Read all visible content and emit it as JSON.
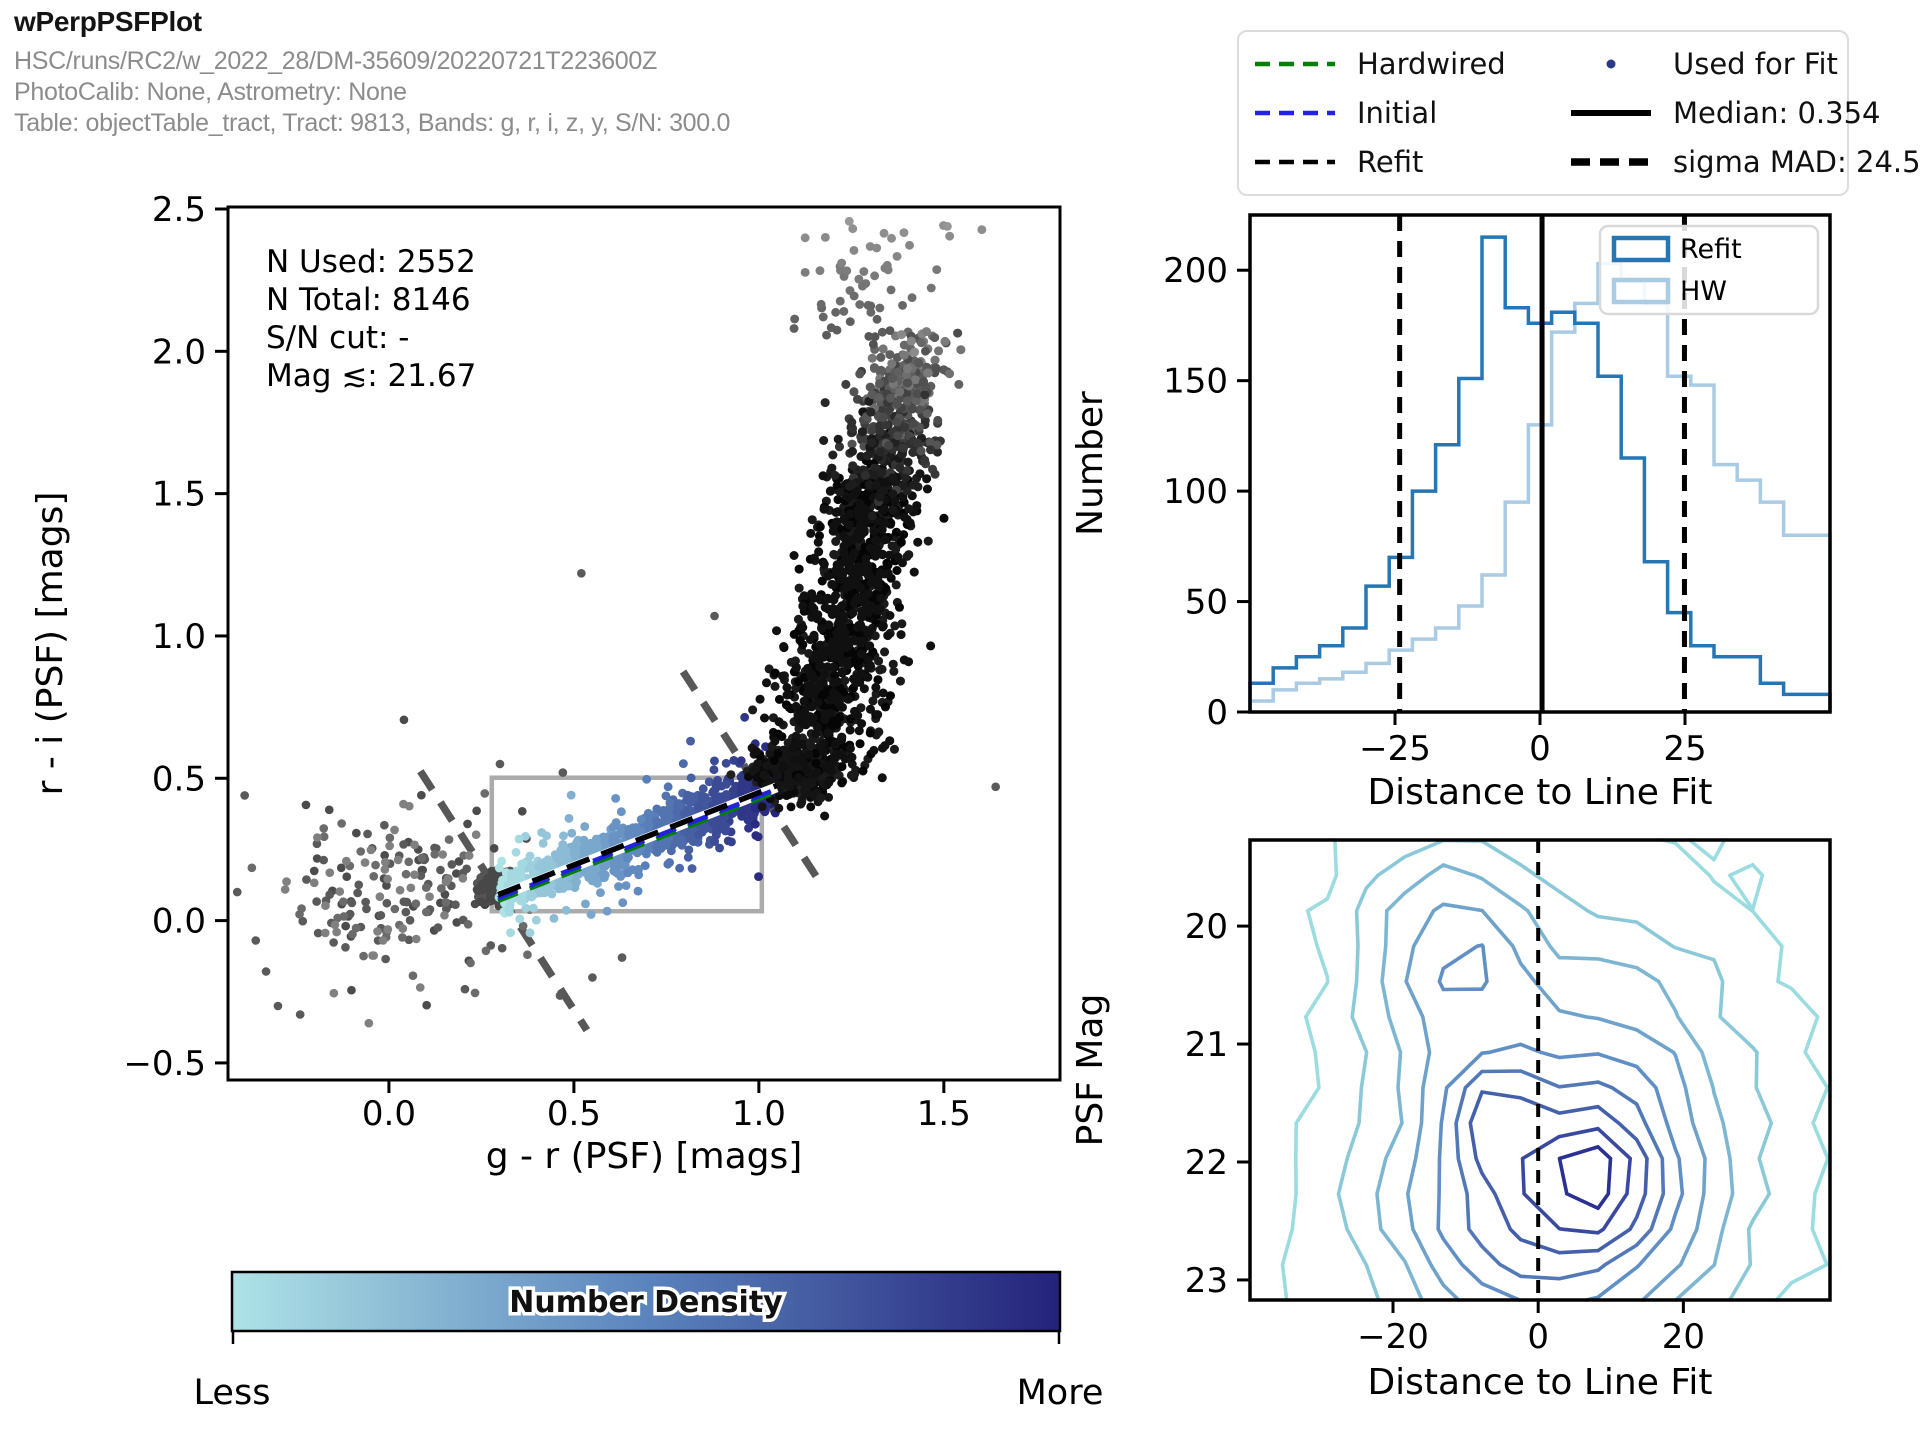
{
  "header": {
    "title": "wPerpPSFPlot",
    "subtitle1": "HSC/runs/RC2/w_2022_28/DM-35609/20220721T223600Z",
    "subtitle2": "PhotoCalib: None, Astrometry: None",
    "subtitle3": "Table: objectTable_tract, Tract: 9813, Bands: g, r, i, z, y, S/N: 300.0"
  },
  "legend": {
    "entries": [
      {
        "label": "Hardwired",
        "swatch": "dashed",
        "color": "#008000"
      },
      {
        "label": "Initial",
        "swatch": "dashed",
        "color": "#2222e0"
      },
      {
        "label": "Refit",
        "swatch": "dashed",
        "color": "#000000"
      },
      {
        "label": "Used for Fit",
        "swatch": "dot",
        "color": "#2b3a86"
      },
      {
        "label": "Median: 0.354",
        "swatch": "solid",
        "color": "#000000"
      },
      {
        "label": "sigma MAD: 24.551",
        "swatch": "dashed-thick",
        "color": "#000000"
      }
    ]
  },
  "colorbar": {
    "title": "Number Density",
    "less_label": "Less",
    "more_label": "More",
    "color_start": "#aee3e6",
    "color_mid": "#5b84bd",
    "color_end": "#24227a"
  },
  "chart_data": [
    {
      "id": "color-color-scatter",
      "type": "scatter",
      "xlabel": "g - r (PSF) [mags]",
      "ylabel": "r - i (PSF) [mags]",
      "xlim": [
        -0.435,
        1.814
      ],
      "ylim": [
        -0.56,
        2.507
      ],
      "xticks": {
        "values": [
          0.0,
          0.5,
          1.0,
          1.5
        ],
        "labels": [
          "0.0",
          "0.5",
          "1.0",
          "1.5"
        ]
      },
      "yticks": {
        "values": [
          -0.5,
          0.0,
          0.5,
          1.0,
          1.5,
          2.0,
          2.5
        ],
        "labels": [
          "−0.5",
          "0.0",
          "0.5",
          "1.0",
          "1.5",
          "2.0",
          "2.5"
        ]
      },
      "annotations": [
        "N Used: 2552",
        "N Total: 8146",
        "S/N cut: -",
        "Mag ≲: 21.67"
      ],
      "stats": {
        "n_used": 2552,
        "n_total": 8146,
        "sn_cut": "-",
        "mag_limit": 21.67
      },
      "selection_box": {
        "x0": 0.278,
        "y0": 0.033,
        "x1": 1.008,
        "y1": 0.502,
        "color": "#ababab"
      },
      "perp_lines": {
        "color": "#575757",
        "segments": [
          [
            0.085,
            0.525,
            0.535,
            -0.385
          ],
          [
            0.795,
            0.875,
            1.175,
            0.115
          ]
        ]
      },
      "fit_lines": {
        "white_band": {
          "x0": 0.295,
          "y0": 0.085,
          "x1": 1.048,
          "y1": 0.468
        },
        "hardwired_dy": -0.016,
        "initial_dy": -0.006,
        "refit_dy": 0.006
      },
      "generators": [
        {
          "name": "left-field",
          "kind": "gauss",
          "n": 190,
          "cx": 0.03,
          "cy": 0.1,
          "sx": 0.165,
          "sy": 0.155,
          "palette": [
            "#4c4c4c",
            "#5a5a5a",
            "#6b6b6b",
            "#808080"
          ],
          "r": 4.3
        },
        {
          "name": "locus-start-clump",
          "kind": "gauss",
          "n": 300,
          "cx": 0.287,
          "cy": 0.115,
          "sx": 0.021,
          "sy": 0.027,
          "palette": [
            "#3d3d3d",
            "#484848",
            "#555555"
          ],
          "r": 4.3
        },
        {
          "name": "stellar-locus",
          "kind": "locus",
          "n": 1250,
          "x0": 0.295,
          "y0": 0.092,
          "x1": 1.045,
          "y1": 0.468,
          "sigma": 0.034,
          "halo_sigma": 0.095,
          "halo_frac": 0.17,
          "r": 4.4
        },
        {
          "name": "locus-knee",
          "kind": "gauss",
          "n": 400,
          "cx": 1.1,
          "cy": 0.525,
          "sx": 0.055,
          "sy": 0.048,
          "palette": [
            "#0a0a0a",
            "#141414",
            "#1f1f1f"
          ],
          "r": 4.4
        },
        {
          "name": "red-branch",
          "kind": "branch",
          "n": 1500,
          "r": 4.5
        },
        {
          "name": "branch-tail",
          "kind": "tail",
          "n": 62,
          "r": 4.4
        },
        {
          "name": "outlier-points",
          "kind": "fixed",
          "r": 4.3,
          "color": "#5a5a5a",
          "points": [
            [
              -0.39,
              0.44
            ],
            [
              -0.41,
              0.1
            ],
            [
              -0.36,
              -0.07
            ],
            [
              -0.3,
              -0.3
            ],
            [
              -0.24,
              -0.33
            ],
            [
              0.55,
              -0.2
            ],
            [
              0.63,
              -0.13
            ],
            [
              0.52,
              1.22
            ],
            [
              0.88,
              1.07
            ],
            [
              1.64,
              0.47
            ],
            [
              0.3,
              0.55
            ],
            [
              0.47,
              0.52
            ]
          ]
        }
      ]
    },
    {
      "id": "distance-histogram",
      "type": "histogram",
      "xlabel": "Distance to Line Fit",
      "ylabel": "Number",
      "xlim": [
        -50,
        50
      ],
      "ylim": [
        0,
        225
      ],
      "bins": {
        "min": -50,
        "max": 50,
        "width": 4
      },
      "xticks": {
        "values": [
          -25,
          0,
          25
        ],
        "labels": [
          "−25",
          "0",
          "25"
        ]
      },
      "yticks": {
        "values": [
          0,
          50,
          100,
          150,
          200
        ],
        "labels": [
          "0",
          "50",
          "100",
          "150",
          "200"
        ]
      },
      "series": [
        {
          "name": "Refit",
          "color": "#2676b3",
          "values": [
            13,
            20,
            25,
            30,
            38,
            57,
            70,
            100,
            121,
            151,
            215,
            183,
            176,
            181,
            176,
            152,
            115,
            68,
            45,
            30,
            25,
            25,
            13,
            8,
            8
          ]
        },
        {
          "name": "HW",
          "color": "#a9cbe3",
          "values": [
            5,
            10,
            13,
            15,
            18,
            22,
            28,
            33,
            38,
            48,
            62,
            95,
            130,
            172,
            185,
            203,
            195,
            185,
            152,
            148,
            112,
            105,
            95,
            80,
            80
          ]
        }
      ],
      "median": 0.354,
      "sigma_mad": 24.551,
      "vlines": {
        "solid": 0.354,
        "dashed": [
          -24.197,
          24.905
        ]
      }
    },
    {
      "id": "psfmag-contour",
      "type": "contour",
      "xlabel": "Distance to Line Fit",
      "ylabel": "PSF Mag",
      "xlim": [
        -39.7,
        40.2
      ],
      "ylim": [
        23.17,
        19.27
      ],
      "y_axis_inverted": true,
      "xticks": {
        "values": [
          -20,
          0,
          20
        ],
        "labels": [
          "−20",
          "0",
          "20"
        ]
      },
      "yticks": {
        "values": [
          20,
          21,
          22,
          23
        ],
        "labels": [
          "20",
          "21",
          "22",
          "23"
        ]
      },
      "zero_line": 0,
      "n_levels": 9,
      "level_color_start": "#9adce0",
      "level_color_mid": "#5f8fc4",
      "level_color_end": "#2b3192",
      "density_peaks": [
        {
          "x": 1,
          "y": 22.35,
          "sx": 15,
          "sy": 0.85,
          "amp": 1.0
        },
        {
          "x": -12,
          "y": 20.2,
          "sx": 8.5,
          "sy": 0.62,
          "amp": 0.62
        },
        {
          "x": -7,
          "y": 21.57,
          "sx": 4.2,
          "sy": 0.3,
          "amp": 0.45
        },
        {
          "x": 8,
          "y": 22.08,
          "sx": 4.6,
          "sy": 0.38,
          "amp": 0.42
        },
        {
          "x": 14,
          "y": 21.1,
          "sx": 11,
          "sy": 1.1,
          "amp": 0.3
        },
        {
          "x": 2,
          "y": 21.6,
          "sx": 26,
          "sy": 2.3,
          "amp": 0.16
        }
      ]
    }
  ],
  "hist_legend": {
    "entries": [
      "Refit",
      "HW"
    ]
  }
}
